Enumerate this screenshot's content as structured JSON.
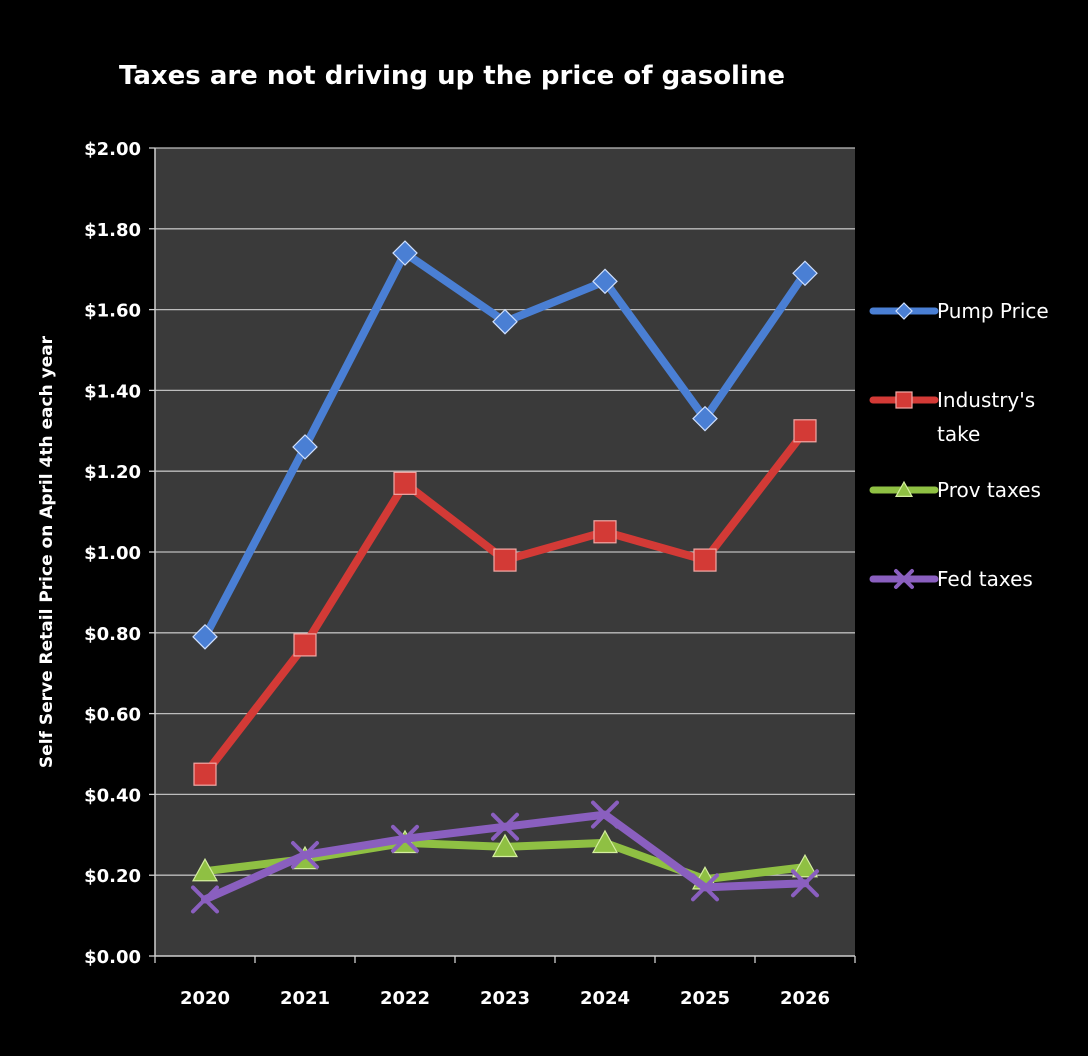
{
  "chart_data": {
    "type": "line",
    "title": "Taxes are not driving up the price of gasoline",
    "xlabel": "",
    "ylabel": "Self Serve Retail Price on April 4th each year",
    "ylim": [
      0,
      2
    ],
    "yticks": [
      "$0.00",
      "$0.20",
      "$0.40",
      "$0.60",
      "$0.80",
      "$1.00",
      "$1.20",
      "$1.40",
      "$1.60",
      "$1.80",
      "$2.00"
    ],
    "categories": [
      "2020",
      "2021",
      "2022",
      "2023",
      "2024",
      "2025",
      "2026"
    ],
    "grid": true,
    "legend_position": "right",
    "series": [
      {
        "name": "Pump Price",
        "legend_lines": [
          "Pump Price"
        ],
        "color": "#4a7fd4",
        "marker": "diamond",
        "values": [
          0.79,
          1.26,
          1.74,
          1.57,
          1.67,
          1.33,
          1.69
        ]
      },
      {
        "name": "Industry's take",
        "legend_lines": [
          "Industry's",
          "take"
        ],
        "color": "#d33a36",
        "marker": "square",
        "values": [
          0.45,
          0.77,
          1.17,
          0.98,
          1.05,
          0.98,
          1.3
        ]
      },
      {
        "name": "Prov taxes",
        "legend_lines": [
          "Prov taxes"
        ],
        "color": "#8fc043",
        "marker": "triangle",
        "values": [
          0.21,
          0.24,
          0.28,
          0.27,
          0.28,
          0.19,
          0.22
        ]
      },
      {
        "name": "Fed taxes",
        "legend_lines": [
          "Fed taxes"
        ],
        "color": "#8a5fbf",
        "marker": "x",
        "values": [
          0.14,
          0.25,
          0.29,
          0.32,
          0.35,
          0.17,
          0.18
        ]
      }
    ]
  }
}
